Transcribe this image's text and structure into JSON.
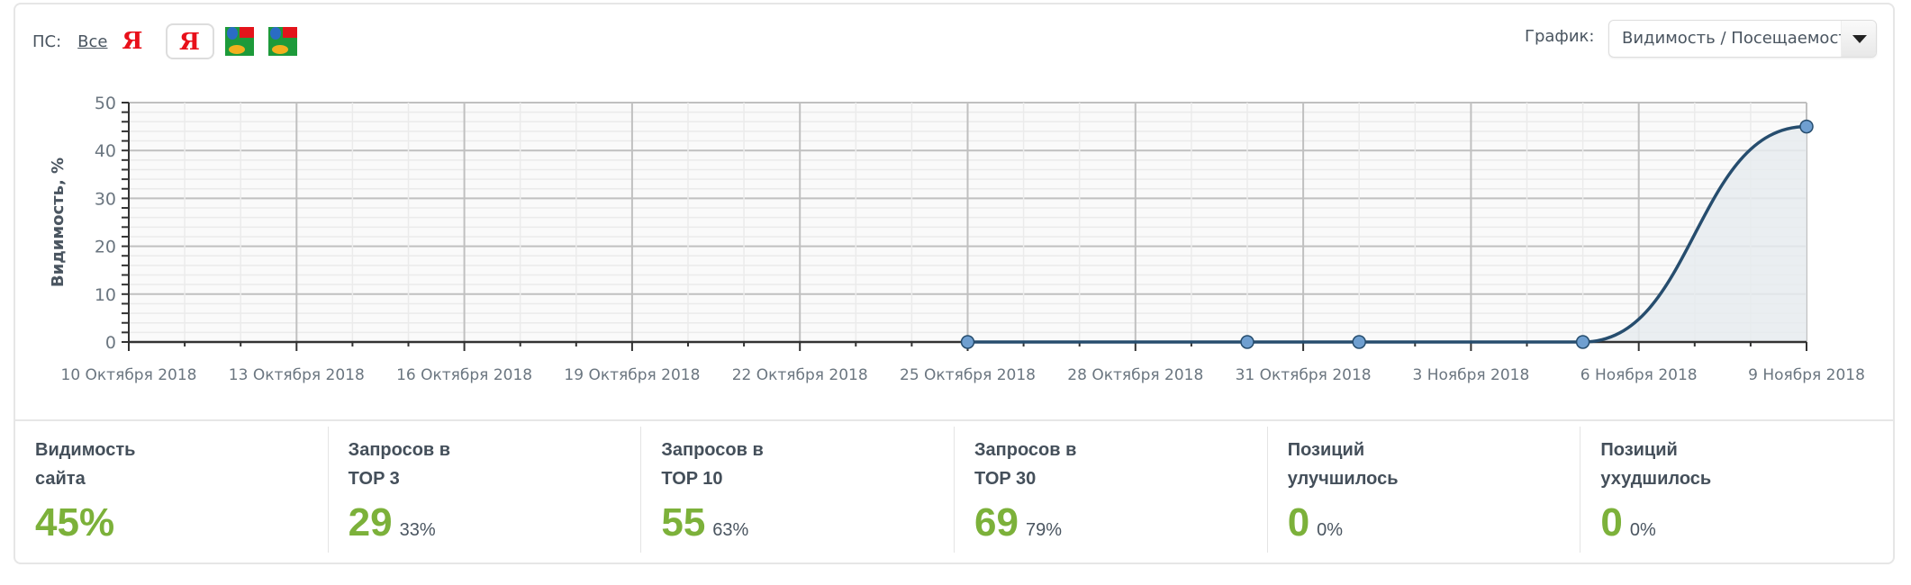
{
  "filter": {
    "label": "ПС:",
    "all_label": "Все",
    "engines": [
      {
        "icon": "yandex-icon",
        "glyph": "Я",
        "selected": false
      },
      {
        "icon": "yandex-icon",
        "glyph": "Я",
        "selected": true
      },
      {
        "icon": "google-icon",
        "selected": false
      },
      {
        "icon": "google-icon",
        "selected": false
      }
    ]
  },
  "graph": {
    "label": "График:",
    "selected": "Видимость / Посещаемость"
  },
  "chart_data": {
    "type": "area",
    "ylabel": "Видимость, %",
    "ylim": [
      0,
      50
    ],
    "yticks": [
      "0",
      "10",
      "20",
      "30",
      "40",
      "50"
    ],
    "xlim": [
      "2018-10-10",
      "2018-11-09"
    ],
    "xticks": [
      "10 Октября 2018",
      "13 Октября 2018",
      "16 Октября 2018",
      "19 Октября 2018",
      "22 Октября 2018",
      "25 Октября 2018",
      "28 Октября 2018",
      "31 Октября 2018",
      "3 Ноября 2018",
      "6 Ноября 2018",
      "9 Ноября 2018"
    ],
    "grid": true,
    "points": [
      {
        "x": "2018-10-25",
        "y": 0
      },
      {
        "x": "2018-10-30",
        "y": 0
      },
      {
        "x": "2018-11-01",
        "y": 0
      },
      {
        "x": "2018-11-05",
        "y": 0
      },
      {
        "x": "2018-11-09",
        "y": 45
      }
    ],
    "colors": {
      "line": "#264d6e",
      "marker": "#6f9fd0",
      "fill": "#e6ebef"
    }
  },
  "stats": [
    {
      "title": "Видимость сайта",
      "value": "45%",
      "percent": ""
    },
    {
      "title": "Запросов в TOP 3",
      "value": "29",
      "percent": "33%"
    },
    {
      "title": "Запросов в TOP 10",
      "value": "55",
      "percent": "63%"
    },
    {
      "title": "Запросов в TOP 30",
      "value": "69",
      "percent": "79%"
    },
    {
      "title": "Позиций улучшилось",
      "value": "0",
      "percent": "0%"
    },
    {
      "title": "Позиций ухудшилось",
      "value": "0",
      "percent": "0%"
    }
  ]
}
